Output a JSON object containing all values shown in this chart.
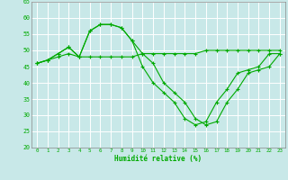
{
  "xlabel": "Humidité relative (%)",
  "xlim": [
    -0.5,
    23.5
  ],
  "ylim": [
    20,
    65
  ],
  "yticks": [
    20,
    25,
    30,
    35,
    40,
    45,
    50,
    55,
    60,
    65
  ],
  "xticks": [
    0,
    1,
    2,
    3,
    4,
    5,
    6,
    7,
    8,
    9,
    10,
    11,
    12,
    13,
    14,
    15,
    16,
    17,
    18,
    19,
    20,
    21,
    22,
    23
  ],
  "bg_color": "#c8e8e8",
  "grid_color": "#ffffff",
  "line_color": "#00aa00",
  "curve1_x": [
    0,
    1,
    2,
    3,
    4,
    5,
    6,
    7,
    8,
    9,
    10,
    11,
    12,
    13,
    14,
    15,
    16,
    17,
    18,
    19,
    20,
    21,
    22,
    23
  ],
  "curve1_y": [
    46,
    47,
    48,
    49,
    48,
    48,
    48,
    48,
    48,
    48,
    49,
    49,
    49,
    49,
    49,
    49,
    50,
    50,
    50,
    50,
    50,
    50,
    50,
    50
  ],
  "curve2_x": [
    0,
    1,
    2,
    3,
    4,
    5,
    6,
    7,
    8,
    9,
    10,
    11,
    12,
    13,
    14,
    15,
    16,
    17,
    18,
    19,
    20,
    21,
    22,
    23
  ],
  "curve2_y": [
    46,
    47,
    49,
    51,
    48,
    56,
    58,
    58,
    57,
    53,
    49,
    46,
    40,
    37,
    34,
    29,
    27,
    28,
    34,
    38,
    43,
    44,
    45,
    49
  ],
  "curve3_x": [
    0,
    1,
    2,
    3,
    4,
    5,
    6,
    7,
    8,
    9,
    10,
    11,
    12,
    13,
    14,
    15,
    16,
    17,
    18,
    19,
    20,
    21,
    22,
    23
  ],
  "curve3_y": [
    46,
    47,
    49,
    51,
    48,
    56,
    58,
    58,
    57,
    53,
    45,
    40,
    37,
    34,
    29,
    27,
    28,
    34,
    38,
    43,
    44,
    45,
    49,
    49
  ]
}
